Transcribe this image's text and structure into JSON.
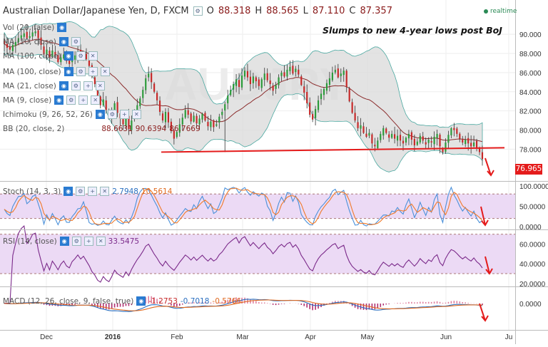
{
  "header": {
    "symbol": "Australian Dollar/Japanese Yen, D, FXCM",
    "O": "88.318",
    "H": "88.565",
    "L": "87.110",
    "C": "87.357",
    "o_label": "O",
    "h_label": "H",
    "l_label": "L",
    "c_label": "C",
    "realtime": "realtime"
  },
  "annotation": "Slumps to new 4-year lows post BoJ",
  "last_price": "76.965",
  "watermark": "AUDJPY",
  "indicators": {
    "vol": "Vol (20, false)",
    "ma1": "MA (10, close)",
    "ma100": "MA (100, close)",
    "ma21": "MA (21, close)",
    "ma9": "MA (9, close)",
    "ichimoku": "Ichimoku (9, 26, 52, 26)",
    "bb": "BB (20, close, 2)",
    "bb_vals": [
      "88.6631",
      "90.6394",
      "86.7669"
    ],
    "stoch": "Stoch (14, 3, 3)",
    "stoch_vals": [
      "2.7948",
      "10.5614"
    ],
    "rsi": "RSI (14, close)",
    "rsi_val": "33.5475",
    "macd": "MACD (12, 26, close, 9, false, true)",
    "macd_vals": [
      "-1.2753",
      "-0.7018",
      "-0.5766"
    ]
  },
  "colors": {
    "up": "#2b9a3a",
    "down": "#c62828",
    "support": "#e41b1b",
    "bbfill": "#d9d9d9",
    "ma": "#8b2c2c",
    "stoch_k": "#4a90d9",
    "stoch_d": "#f07a2a",
    "rsi": "#7b2a8a",
    "osc_bg": "#ecdaf5",
    "arrow": "#e41b1b"
  },
  "chart_data": {
    "type": "candlestick",
    "x_ticks": [
      "Dec",
      "2016",
      "Feb",
      "Mar",
      "Apr",
      "May",
      "Jun",
      "Ju"
    ],
    "y_ticks": [
      "90.000",
      "88.000",
      "86.000",
      "84.000",
      "82.000",
      "80.000",
      "78.000"
    ],
    "ylim": [
      75.5,
      91.5
    ],
    "support_level": [
      77.7,
      78.15
    ],
    "close": [
      89.0,
      88.6,
      88.4,
      88.9,
      89.2,
      89.6,
      89.9,
      90.1,
      89.6,
      89.8,
      90.2,
      90.3,
      89.6,
      88.9,
      87.9,
      88.4,
      87.6,
      88.3,
      87.8,
      87.1,
      87.6,
      87.9,
      87.2,
      86.9,
      87.5,
      87.8,
      88.2,
      87.7,
      88.0,
      87.4,
      86.7,
      85.6,
      84.8,
      83.3,
      82.6,
      83.2,
      82.1,
      81.4,
      82.0,
      82.8,
      81.8,
      81.2,
      80.6,
      81.3,
      80.1,
      81.0,
      81.8,
      82.6,
      83.3,
      84.2,
      85.4,
      85.9,
      85.0,
      84.0,
      83.1,
      81.9,
      81.0,
      81.9,
      80.8,
      79.9,
      79.1,
      79.8,
      80.6,
      81.3,
      82.1,
      81.6,
      80.9,
      81.5,
      80.7,
      81.2,
      81.7,
      81.0,
      80.4,
      80.9,
      80.3,
      80.6,
      81.4,
      81.9,
      82.7,
      83.6,
      84.2,
      84.8,
      85.3,
      84.5,
      85.7,
      86.2,
      85.5,
      84.8,
      85.6,
      85.1,
      84.6,
      85.3,
      85.9,
      85.2,
      84.8,
      84.1,
      84.7,
      85.5,
      86.0,
      85.6,
      86.3,
      86.6,
      85.9,
      86.4,
      85.8,
      84.7,
      83.9,
      82.8,
      81.6,
      81.1,
      82.2,
      83.1,
      83.8,
      84.3,
      84.9,
      85.4,
      86.0,
      86.3,
      85.5,
      85.9,
      86.2,
      84.5,
      83.0,
      81.8,
      81.0,
      80.2,
      80.5,
      79.7,
      79.3,
      79.7,
      78.6,
      78.3,
      78.9,
      79.6,
      80.2,
      79.7,
      79.2,
      79.6,
      79.1,
      79.4,
      78.9,
      78.6,
      79.2,
      79.6,
      79.0,
      78.4,
      78.8,
      79.4,
      78.9,
      78.5,
      79.0,
      78.7,
      79.3,
      79.6,
      78.3,
      77.7,
      78.7,
      79.5,
      80.2,
      80.0,
      79.6,
      79.1,
      78.7,
      79.0,
      78.6,
      78.3,
      78.7,
      78.1,
      77.7,
      76.97
    ]
  }
}
